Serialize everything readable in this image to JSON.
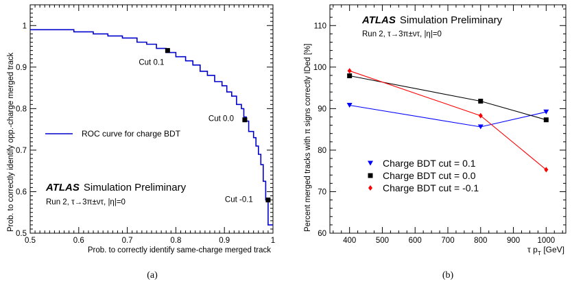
{
  "chart_data": [
    {
      "type": "line",
      "panel_label": "(a)",
      "xlabel": "Prob. to correctly identify same-charge merged track",
      "ylabel": "Prob. to correctly identify opp.-charge merged track",
      "xlim": [
        0.5,
        1.0
      ],
      "ylim": [
        0.5,
        1.05
      ],
      "xticks": [
        "0.5",
        "0.6",
        "0.7",
        "0.8",
        "0.9",
        "1"
      ],
      "yticks": [
        "0.5",
        "0.6",
        "0.7",
        "0.8",
        "0.9",
        "1"
      ],
      "atlas_label": "ATLAS",
      "atlas_sub": "Simulation Preliminary",
      "info_text": "Run 2, τ→3π±ντ, |η|=0",
      "legend": "ROC curve for charge BDT",
      "series": [
        {
          "name": "ROC curve for charge BDT",
          "color": "#0000cc",
          "x": [
            0.5,
            0.52,
            0.52,
            0.59,
            0.59,
            0.63,
            0.63,
            0.66,
            0.66,
            0.69,
            0.69,
            0.72,
            0.72,
            0.74,
            0.74,
            0.76,
            0.76,
            0.78,
            0.78,
            0.8,
            0.8,
            0.82,
            0.82,
            0.835,
            0.835,
            0.85,
            0.85,
            0.865,
            0.865,
            0.88,
            0.88,
            0.895,
            0.895,
            0.905,
            0.905,
            0.915,
            0.915,
            0.925,
            0.925,
            0.935,
            0.935,
            0.94,
            0.94,
            0.945,
            0.945,
            0.95,
            0.95,
            0.96,
            0.96,
            0.965,
            0.965,
            0.97,
            0.97,
            0.975,
            0.975,
            0.98,
            0.98,
            0.985,
            0.985,
            0.99,
            0.99,
            0.99,
            0.995,
            1.0
          ],
          "y": [
            0.99,
            0.99,
            0.99,
            0.99,
            0.985,
            0.985,
            0.98,
            0.98,
            0.975,
            0.975,
            0.97,
            0.97,
            0.96,
            0.96,
            0.955,
            0.955,
            0.945,
            0.945,
            0.935,
            0.935,
            0.925,
            0.925,
            0.915,
            0.915,
            0.905,
            0.905,
            0.89,
            0.89,
            0.88,
            0.88,
            0.865,
            0.865,
            0.855,
            0.855,
            0.84,
            0.84,
            0.83,
            0.83,
            0.81,
            0.81,
            0.8,
            0.8,
            0.78,
            0.78,
            0.77,
            0.77,
            0.745,
            0.745,
            0.73,
            0.73,
            0.71,
            0.71,
            0.69,
            0.69,
            0.665,
            0.665,
            0.625,
            0.625,
            0.58,
            0.58,
            0.55,
            0.52,
            0.52,
            0.52
          ]
        }
      ],
      "markers": [
        {
          "label": "Cut 0.1",
          "x": 0.783,
          "y": 0.94
        },
        {
          "label": "Cut 0.0",
          "x": 0.942,
          "y": 0.773
        },
        {
          "label": "Cut -0.1",
          "x": 0.99,
          "y": 0.58
        }
      ]
    },
    {
      "type": "line",
      "panel_label": "(b)",
      "xlabel": "τ pT [GeV]",
      "ylabel": "Percent merged tracks with π signs correctly IDed [%]",
      "xlim": [
        340,
        1060
      ],
      "ylim": [
        60,
        115
      ],
      "xticks": [
        "400",
        "500",
        "600",
        "700",
        "800",
        "900",
        "1000"
      ],
      "yticks": [
        "60",
        "70",
        "80",
        "90",
        "100",
        "110"
      ],
      "atlas_label": "ATLAS",
      "atlas_sub": "Simulation Preliminary",
      "info_text": "Run 2, τ→3π±ντ, |η|=0",
      "series": [
        {
          "name": "Charge BDT cut = 0.1",
          "color": "#0000ff",
          "marker": "triangle-down",
          "x": [
            400,
            800,
            1000
          ],
          "y": [
            90.8,
            85.6,
            89.2
          ]
        },
        {
          "name": "Charge BDT cut = 0.0",
          "color": "#000000",
          "marker": "square",
          "x": [
            400,
            800,
            1000
          ],
          "y": [
            97.9,
            91.8,
            87.3
          ]
        },
        {
          "name": "Charge BDT cut = -0.1",
          "color": "#ff0000",
          "marker": "diamond",
          "x": [
            400,
            800,
            1000
          ],
          "y": [
            99.1,
            88.3,
            75.3
          ]
        }
      ]
    }
  ]
}
